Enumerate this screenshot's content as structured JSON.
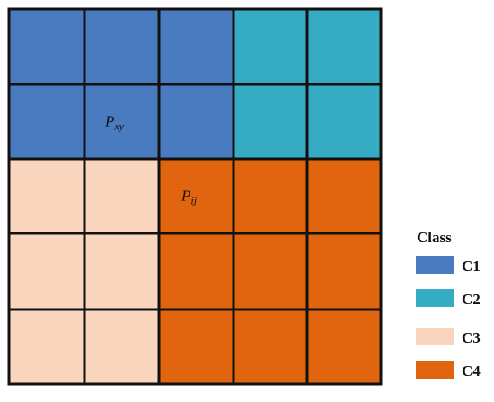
{
  "grid": {
    "rows": 5,
    "cols": 5,
    "cells": [
      [
        "C1",
        "C1",
        "C1",
        "C2",
        "C2"
      ],
      [
        "C1",
        "C1",
        "C1",
        "C2",
        "C2"
      ],
      [
        "C3",
        "C3",
        "C4",
        "C4",
        "C4"
      ],
      [
        "C3",
        "C3",
        "C4",
        "C4",
        "C4"
      ],
      [
        "C3",
        "C3",
        "C4",
        "C4",
        "C4"
      ]
    ],
    "cell_labels": [
      {
        "row": 1,
        "col": 1,
        "base": "P",
        "sub": "xy"
      },
      {
        "row": 2,
        "col": 2,
        "base": "P",
        "sub": "ij"
      }
    ]
  },
  "legend": {
    "title": "Class",
    "items": [
      {
        "label": "C1",
        "color": "#4a7abf"
      },
      {
        "label": "C2",
        "color": "#36abc4"
      },
      {
        "label": "C3",
        "color": "#f9d5bd"
      },
      {
        "label": "C4",
        "color": "#e1650f"
      }
    ]
  },
  "line_color": "#111111"
}
